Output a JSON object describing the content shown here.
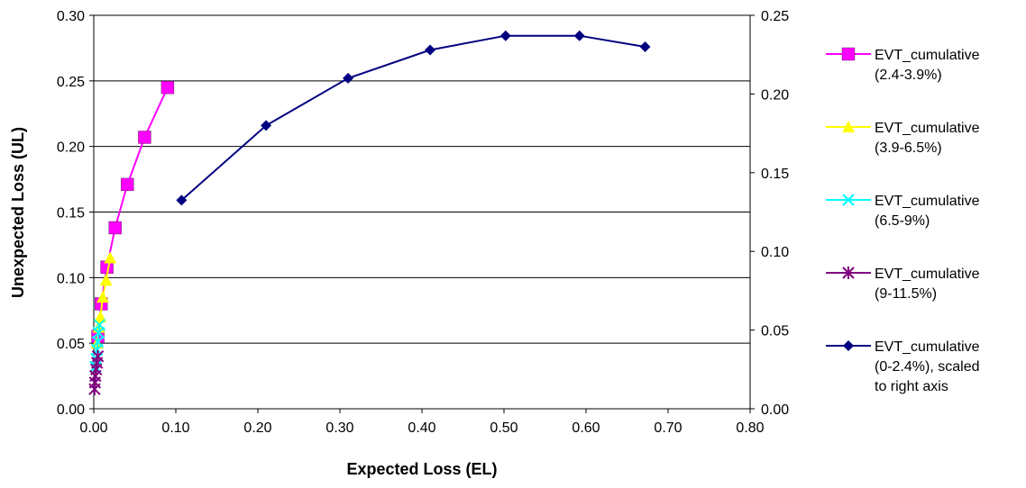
{
  "chart_data": {
    "type": "scatter",
    "xlabel": "Expected Loss (EL)",
    "ylabel": "Unexpected Loss (UL)",
    "x_ticks": [
      "0.00",
      "0.10",
      "0.20",
      "0.30",
      "0.40",
      "0.50",
      "0.60",
      "0.70",
      "0.80"
    ],
    "y_left_ticks": [
      "0.00",
      "0.05",
      "0.10",
      "0.15",
      "0.20",
      "0.25",
      "0.30"
    ],
    "y_right_ticks": [
      "0.00",
      "0.05",
      "0.10",
      "0.15",
      "0.20",
      "0.25"
    ],
    "xlim": [
      0,
      0.8
    ],
    "ylim_left": [
      0,
      0.3
    ],
    "ylim_right": [
      0,
      0.25
    ],
    "grid": "horizontal",
    "legend_position": "right",
    "series": [
      {
        "name": "EVT_cumulative (2.4-3.9%)",
        "legend_lines": [
          "EVT_cumulative",
          "(2.4-3.9%)"
        ],
        "color": "#FF00FF",
        "marker": "square",
        "axis": "left",
        "points": [
          [
            0.005,
            0.055
          ],
          [
            0.009,
            0.08
          ],
          [
            0.016,
            0.108
          ],
          [
            0.026,
            0.138
          ],
          [
            0.041,
            0.171
          ],
          [
            0.062,
            0.207
          ],
          [
            0.09,
            0.245
          ]
        ]
      },
      {
        "name": "EVT_cumulative (3.9-6.5%)",
        "legend_lines": [
          "EVT_cumulative",
          "(3.9-6.5%)"
        ],
        "color": "#FFFF00",
        "marker": "triangle",
        "axis": "left",
        "points": [
          [
            0.004,
            0.05
          ],
          [
            0.006,
            0.062
          ],
          [
            0.008,
            0.07
          ],
          [
            0.011,
            0.085
          ],
          [
            0.015,
            0.098
          ],
          [
            0.02,
            0.115
          ]
        ]
      },
      {
        "name": "EVT_cumulative (6.5-9%)",
        "legend_lines": [
          "EVT_cumulative",
          "(6.5-9%)"
        ],
        "color": "#00FFFF",
        "marker": "x",
        "axis": "left",
        "points": [
          [
            0.002,
            0.032
          ],
          [
            0.003,
            0.038
          ],
          [
            0.004,
            0.045
          ],
          [
            0.005,
            0.051
          ],
          [
            0.006,
            0.058
          ],
          [
            0.007,
            0.064
          ]
        ]
      },
      {
        "name": "EVT_cumulative (9-11.5%)",
        "legend_lines": [
          "EVT_cumulative",
          "(9-11.5%)"
        ],
        "color": "#800080",
        "marker": "star",
        "axis": "left",
        "points": [
          [
            0.001,
            0.015
          ],
          [
            0.0015,
            0.02
          ],
          [
            0.002,
            0.025
          ],
          [
            0.003,
            0.03
          ],
          [
            0.004,
            0.035
          ],
          [
            0.005,
            0.04
          ]
        ]
      },
      {
        "name": "EVT_cumulative (0-2.4%), scaled to right axis",
        "legend_lines": [
          "EVT_cumulative",
          "(0-2.4%), scaled",
          "to right axis"
        ],
        "color": "#000080",
        "marker": "diamond",
        "axis": "right",
        "points": [
          [
            0.107,
            0.1325
          ],
          [
            0.21,
            0.18
          ],
          [
            0.31,
            0.21
          ],
          [
            0.41,
            0.228
          ],
          [
            0.502,
            0.237
          ],
          [
            0.592,
            0.237
          ],
          [
            0.672,
            0.23
          ]
        ]
      }
    ]
  }
}
